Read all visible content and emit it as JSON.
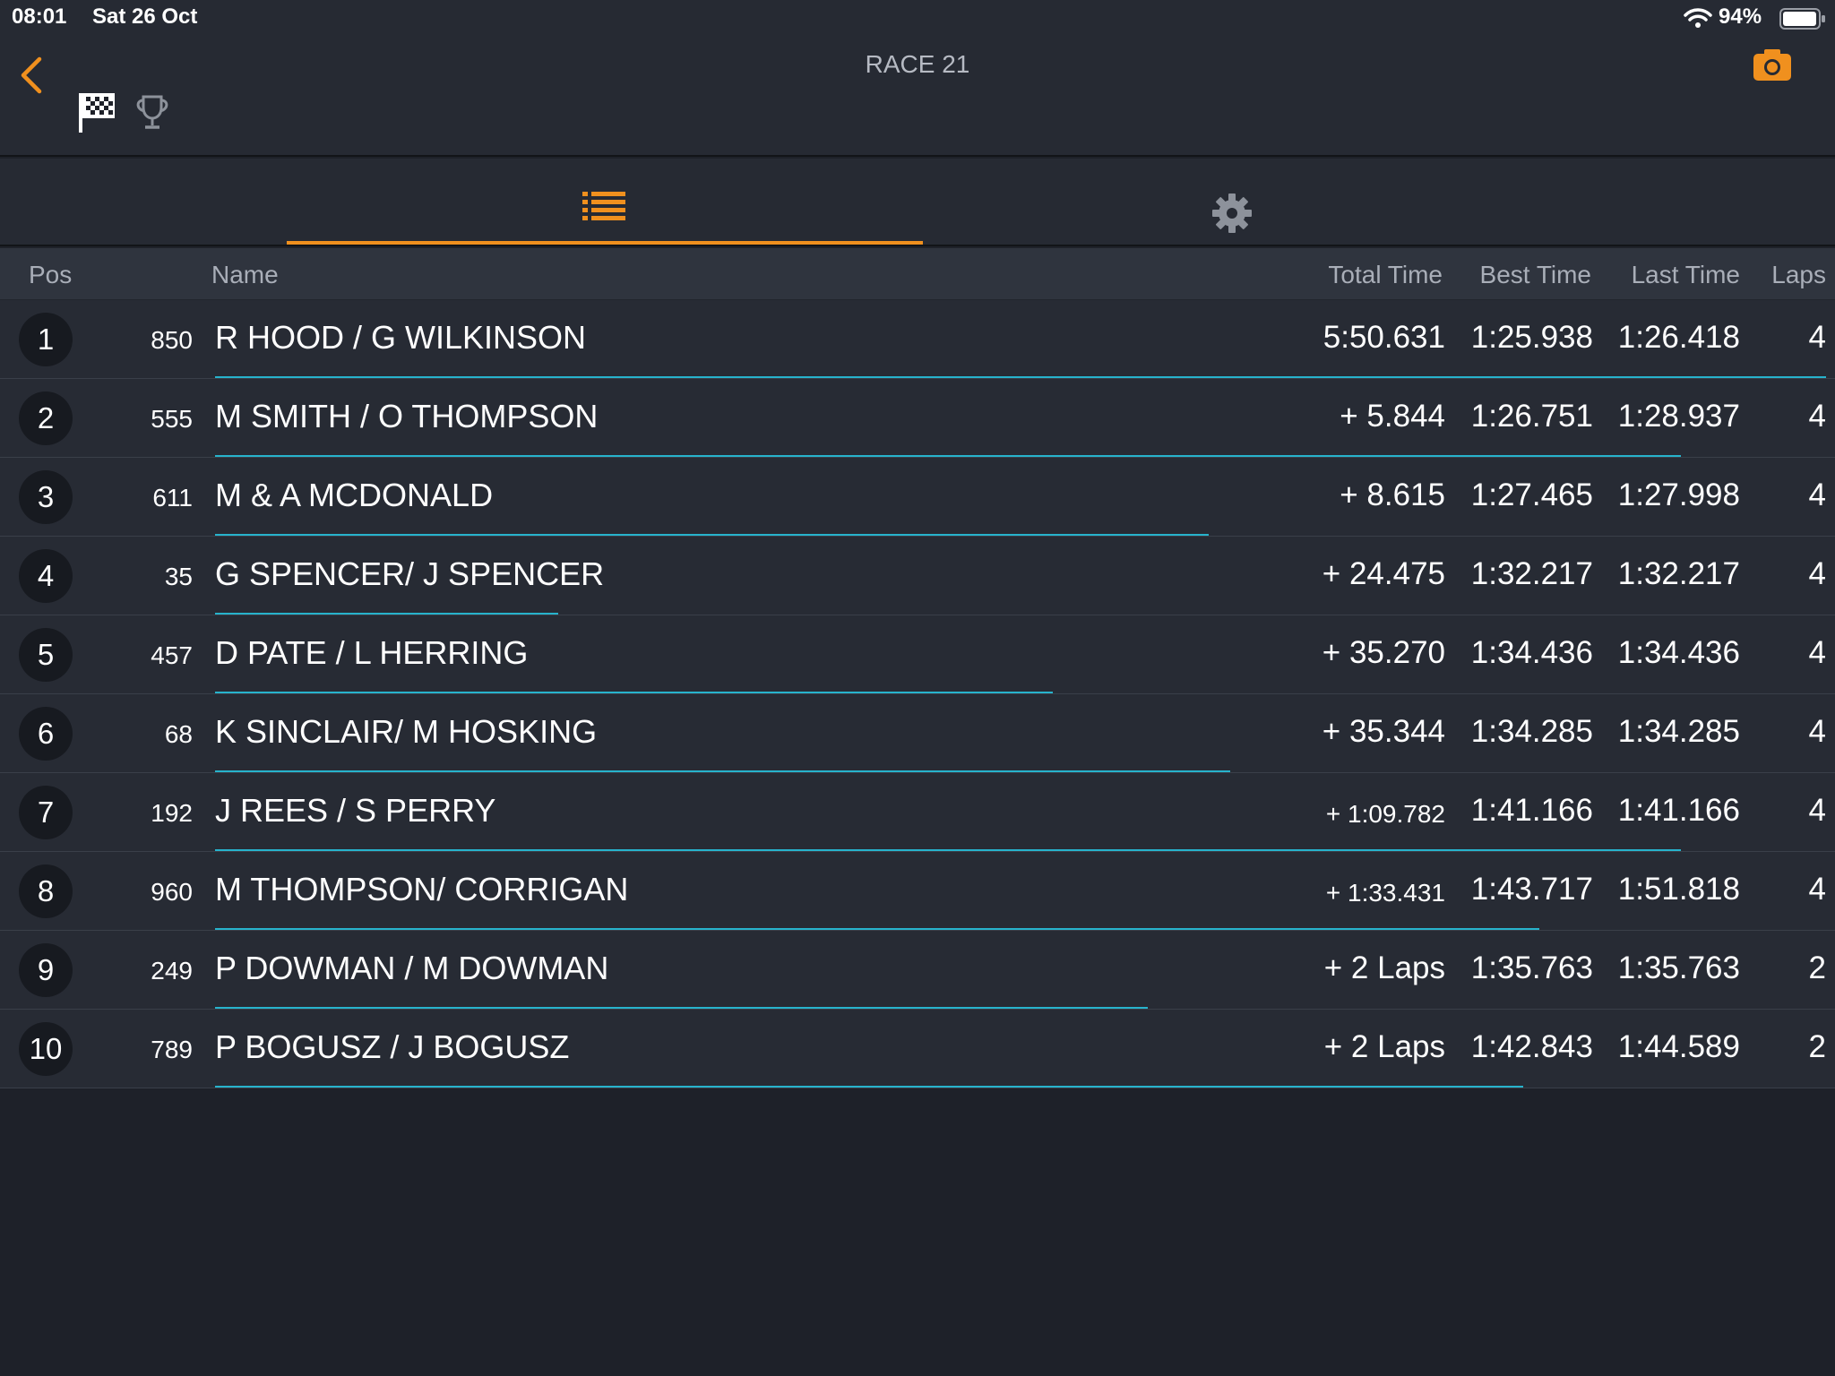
{
  "status_bar": {
    "time": "08:01",
    "date": "Sat 26 Oct",
    "battery": "94%"
  },
  "header": {
    "title": "RACE 21",
    "back_icon": "chevron-left-icon",
    "flag_icon": "checkered-flag-icon",
    "trophy_icon": "trophy-icon",
    "camera_icon": "camera-icon"
  },
  "tabs": [
    {
      "icon": "list-icon",
      "active": true
    },
    {
      "icon": "gear-icon",
      "active": false
    }
  ],
  "columns": {
    "pos": "Pos",
    "name": "Name",
    "total": "Total Time",
    "best": "Best Time",
    "last": "Last Time",
    "laps": "Laps"
  },
  "colors": {
    "accent": "#f0901e",
    "progress": "#27b3cc",
    "background": "#1e2129"
  },
  "rows": [
    {
      "pos": "1",
      "num": "850",
      "name": "R HOOD / G WILKINSON",
      "total": "5:50.631",
      "best": "1:25.938",
      "last": "1:26.418",
      "laps": "4",
      "progress": 1.0
    },
    {
      "pos": "2",
      "num": "555",
      "name": "M SMITH / O THOMPSON",
      "total": "+ 5.844",
      "best": "1:26.751",
      "last": "1:28.937",
      "laps": "4",
      "progress": 0.91
    },
    {
      "pos": "3",
      "num": "611",
      "name": "M & A MCDONALD",
      "total": "+ 8.615",
      "best": "1:27.465",
      "last": "1:27.998",
      "laps": "4",
      "progress": 0.617
    },
    {
      "pos": "4",
      "num": "35",
      "name": "G SPENCER/ J SPENCER",
      "total": "+ 24.475",
      "best": "1:32.217",
      "last": "1:32.217",
      "laps": "4",
      "progress": 0.213
    },
    {
      "pos": "5",
      "num": "457",
      "name": "D PATE / L HERRING",
      "total": "+ 35.270",
      "best": "1:34.436",
      "last": "1:34.436",
      "laps": "4",
      "progress": 0.52
    },
    {
      "pos": "6",
      "num": "68",
      "name": "K SINCLAIR/ M HOSKING",
      "total": "+ 35.344",
      "best": "1:34.285",
      "last": "1:34.285",
      "laps": "4",
      "progress": 0.63
    },
    {
      "pos": "7",
      "num": "192",
      "name": "J REES / S PERRY",
      "total": "+ 1:09.782",
      "best": "1:41.166",
      "last": "1:41.166",
      "laps": "4",
      "progress": 0.91
    },
    {
      "pos": "8",
      "num": "960",
      "name": "M THOMPSON/ CORRIGAN",
      "total": "+ 1:33.431",
      "best": "1:43.717",
      "last": "1:51.818",
      "laps": "4",
      "progress": 0.822
    },
    {
      "pos": "9",
      "num": "249",
      "name": "P DOWMAN / M DOWMAN",
      "total": "+ 2 Laps",
      "best": "1:35.763",
      "last": "1:35.763",
      "laps": "2",
      "progress": 0.579
    },
    {
      "pos": "10",
      "num": "789",
      "name": "P BOGUSZ / J BOGUSZ",
      "total": "+ 2 Laps",
      "best": "1:42.843",
      "last": "1:44.589",
      "laps": "2",
      "progress": 0.812
    }
  ]
}
